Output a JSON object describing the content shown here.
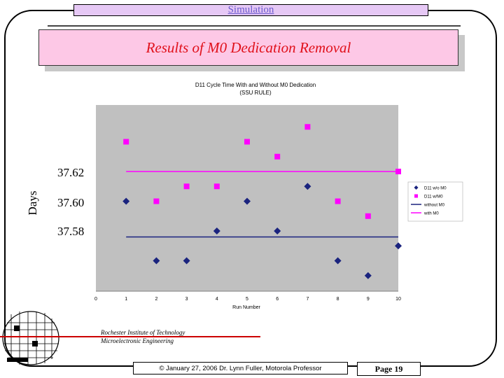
{
  "header": {
    "section_title": "Simulation"
  },
  "slide": {
    "title": "Results of M0 Dedication Removal"
  },
  "overlay": {
    "y_axis_title": "Days",
    "labels": [
      "37.62",
      "37.60",
      "37.58"
    ]
  },
  "chart_data": {
    "type": "scatter",
    "title": "D11 Cycle Time With and Without M0 Dedication",
    "subtitle": "(SSU RULE)",
    "xlabel": "Run Number",
    "ylabel": "",
    "xlim": [
      0,
      10
    ],
    "xticks": [
      "0",
      "1",
      "2",
      "3",
      "4",
      "5",
      "6",
      "7",
      "8",
      "9",
      "10"
    ],
    "grid": false,
    "legend_position": "right",
    "series": [
      {
        "name": "D11 w/o M0",
        "kind": "points",
        "marker": "diamond",
        "color": "#1a237e",
        "x": [
          1,
          2,
          3,
          4,
          5,
          6,
          7,
          8,
          9,
          10
        ],
        "y": [
          37.6,
          37.56,
          37.56,
          37.58,
          37.6,
          37.58,
          37.61,
          37.56,
          37.55,
          37.57
        ]
      },
      {
        "name": "D11 w/M0",
        "kind": "points",
        "marker": "square",
        "color": "#ff00ff",
        "x": [
          1,
          2,
          3,
          4,
          5,
          6,
          7,
          8,
          9,
          10
        ],
        "y": [
          37.64,
          37.6,
          37.61,
          37.61,
          37.64,
          37.63,
          37.65,
          37.6,
          37.59,
          37.62
        ]
      },
      {
        "name": "without M0",
        "kind": "line",
        "color": "#1a237e",
        "x": [
          1,
          10
        ],
        "y": [
          37.576,
          37.576
        ]
      },
      {
        "name": "with M0",
        "kind": "line",
        "color": "#ff00ff",
        "x": [
          1,
          10
        ],
        "y": [
          37.62,
          37.62
        ]
      }
    ]
  },
  "footer": {
    "institution": "Rochester Institute of Technology",
    "department": "Microelectronic Engineering",
    "copyright": "© January 27, 2006  Dr. Lynn Fuller, Motorola Professor",
    "page": "Page 19"
  }
}
